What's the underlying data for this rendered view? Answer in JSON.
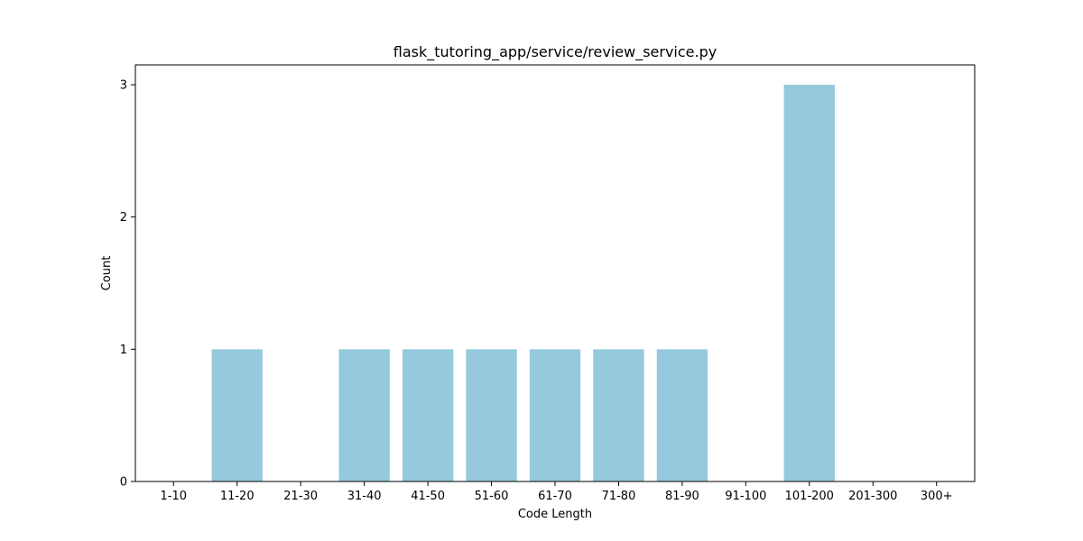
{
  "chart_data": {
    "type": "bar",
    "title": "flask_tutoring_app/service/review_service.py",
    "xlabel": "Code Length",
    "ylabel": "Count",
    "categories": [
      "1-10",
      "11-20",
      "21-30",
      "31-40",
      "41-50",
      "51-60",
      "61-70",
      "71-80",
      "81-90",
      "91-100",
      "101-200",
      "201-300",
      "300+"
    ],
    "values": [
      0,
      1,
      0,
      1,
      1,
      1,
      1,
      1,
      1,
      0,
      3,
      0,
      0
    ],
    "yticks": [
      0,
      1,
      2,
      3
    ],
    "ylim": [
      0,
      3.15
    ],
    "grid": false,
    "bar_color": "#96c9dd"
  }
}
